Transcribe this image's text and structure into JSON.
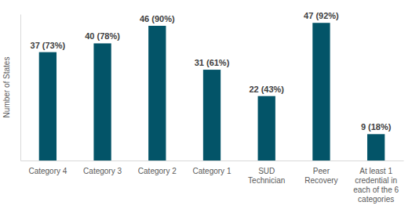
{
  "chart_data": {
    "type": "bar",
    "y_label": "Number of States",
    "categories": [
      "Category 4",
      "Category 3",
      "Category 2",
      "Category 1",
      "SUD Technician",
      "Peer Recovery",
      "At least 1 credential in each of the 6 categories"
    ],
    "values": [
      37,
      40,
      46,
      31,
      22,
      47,
      9
    ],
    "value_labels": [
      "37 (73%)",
      "40 (78%)",
      "46 (90%)",
      "31 (61%)",
      "22 (43%)",
      "47 (92%)",
      "9 (18%)"
    ],
    "color": "#035468",
    "ylim": [
      0,
      50
    ],
    "data_labels": true,
    "tick_labels": "x",
    "grid": false
  }
}
